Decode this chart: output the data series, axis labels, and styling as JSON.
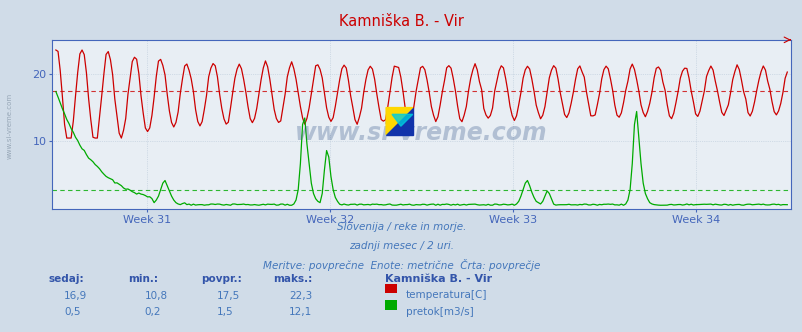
{
  "title": "Kamniška B. - Vir",
  "title_color": "#cc0000",
  "bg_color": "#d0dce8",
  "plot_bg_color": "#e8eef4",
  "grid_color": "#b8c8d8",
  "axis_color": "#4466bb",
  "text_color": "#4477bb",
  "label_color": "#3355aa",
  "weeks": [
    "Week 31",
    "Week 32",
    "Week 33",
    "Week 34"
  ],
  "temp_color": "#cc0000",
  "flow_color": "#00aa00",
  "temp_avg": 17.5,
  "flow_avg_scaled": 1.5,
  "footer_line1": "Slovenija / reke in morje.",
  "footer_line2": "zadnji mesec / 2 uri.",
  "footer_line3": "Meritve: povprečne  Enote: metrične  Črta: povprečje",
  "table_headers": [
    "sedaj:",
    "min.:",
    "povpr.:",
    "maks.:"
  ],
  "table_row1": [
    "16,9",
    "10,8",
    "17,5",
    "22,3"
  ],
  "table_row2": [
    "0,5",
    "0,2",
    "1,5",
    "12,1"
  ],
  "label_temp": "temperatura[C]",
  "label_flow": "pretok[m3/s]",
  "station_name": "Kamniška B. - Vir",
  "watermark": "www.si-vreme.com",
  "ylim": [
    0,
    25
  ],
  "yticks": [
    10,
    20
  ],
  "temp_max": 22.3,
  "temp_min": 10.8,
  "flow_max": 12.1,
  "flow_min": 0.2
}
